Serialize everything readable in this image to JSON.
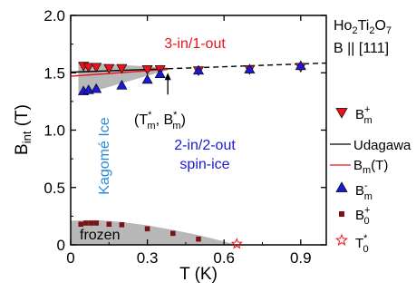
{
  "chart_data": {
    "type": "scatter",
    "xlabel": "T (K)",
    "ylabel": "B_int (T)",
    "xlim": [
      0,
      1.0
    ],
    "ylim": [
      0,
      2.0
    ],
    "x_ticks": [
      "0",
      "0.3",
      "0.6",
      "0.9"
    ],
    "x_tick_values": [
      0,
      0.3,
      0.6,
      0.9
    ],
    "y_ticks": [
      "0",
      "0.5",
      "1.0",
      "1.5",
      "2.0"
    ],
    "y_tick_values": [
      0,
      0.5,
      1.0,
      1.5,
      2.0
    ],
    "sample_label": "Ho2Ti2O7",
    "field_label": "B || [111]",
    "annotations": {
      "three_in_one_out": "3-in/1-out",
      "two_in_two_out_line1": "2-in/2-out",
      "two_in_two_out_line2": "spin-ice",
      "kagome": "Kagomé Ice",
      "frozen": "frozen",
      "tm_bm": "(T*m, B*m)"
    },
    "colors": {
      "red": "#e8141c",
      "blue": "#1a1ad4",
      "kagome": "#2a8ad8",
      "darkred": "#7a1414",
      "gray": "#b8b8b8"
    },
    "series": [
      {
        "name": "B+m",
        "marker": "triangle-down",
        "color": "#e8141c",
        "points": [
          [
            0.05,
            1.56
          ],
          [
            0.07,
            1.55
          ],
          [
            0.1,
            1.55
          ],
          [
            0.15,
            1.54
          ],
          [
            0.2,
            1.54
          ],
          [
            0.3,
            1.53
          ],
          [
            0.35,
            1.53
          ],
          [
            0.5,
            1.52
          ],
          [
            0.7,
            1.53
          ],
          [
            0.9,
            1.55
          ]
        ]
      },
      {
        "name": "B-m",
        "marker": "triangle-up",
        "color": "#1a1ad4",
        "points": [
          [
            0.05,
            1.34
          ],
          [
            0.07,
            1.35
          ],
          [
            0.1,
            1.36
          ],
          [
            0.2,
            1.39
          ],
          [
            0.3,
            1.44
          ],
          [
            0.35,
            1.49
          ],
          [
            0.5,
            1.52
          ],
          [
            0.7,
            1.53
          ],
          [
            0.9,
            1.56
          ]
        ]
      },
      {
        "name": "Udagawa",
        "line": "solid",
        "color": "#000000",
        "points": [
          [
            0.0,
            1.505
          ],
          [
            0.38,
            1.535
          ]
        ]
      },
      {
        "name": "Udagawa-extrapolation",
        "line": "dashed",
        "color": "#000000",
        "points": [
          [
            0.38,
            1.535
          ],
          [
            1.0,
            1.585
          ]
        ]
      },
      {
        "name": "Bm(T)",
        "line": "solid",
        "color": "#e8141c",
        "points": [
          [
            0.0,
            1.47
          ],
          [
            0.38,
            1.53
          ]
        ]
      },
      {
        "name": "B+0",
        "marker": "square",
        "color": "#7a1414",
        "points": [
          [
            0.04,
            0.18
          ],
          [
            0.06,
            0.19
          ],
          [
            0.08,
            0.19
          ],
          [
            0.1,
            0.19
          ],
          [
            0.15,
            0.18
          ],
          [
            0.2,
            0.175
          ],
          [
            0.3,
            0.14
          ],
          [
            0.4,
            0.1
          ],
          [
            0.5,
            0.05
          ]
        ]
      },
      {
        "name": "T*0",
        "marker": "star-open",
        "color": "#e8141c",
        "points": [
          [
            0.65,
            0.0
          ]
        ]
      }
    ],
    "shaded_regions": {
      "upper_band": {
        "x": [
          0.03,
          0.38
        ],
        "upper": [
          1.59,
          1.545
        ],
        "lower": [
          1.3,
          1.525
        ]
      },
      "frozen_region": {
        "x": [
          0,
          0.1,
          0.2,
          0.3,
          0.4,
          0.5,
          0.6,
          0.65
        ],
        "upper": [
          0.21,
          0.215,
          0.2,
          0.17,
          0.13,
          0.085,
          0.03,
          0.0
        ]
      }
    },
    "arrow": {
      "from": [
        0.38,
        1.31
      ],
      "to": [
        0.38,
        1.5
      ]
    },
    "legend": {
      "placement": "right",
      "entries": [
        "B+m",
        "Udagawa",
        "Bm(T)",
        "B-m",
        "B+0",
        "T*0"
      ]
    }
  }
}
